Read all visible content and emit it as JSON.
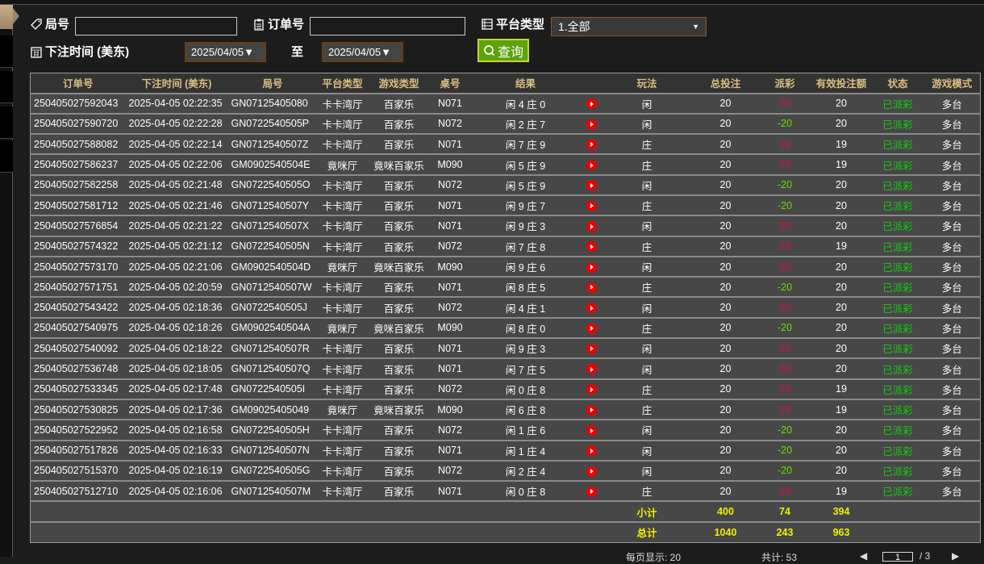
{
  "filters": {
    "round_label": "局号",
    "round_value": "",
    "order_label": "订单号",
    "order_value": "",
    "platform_label": "平台类型",
    "platform_value": "1.全部",
    "time_label": "下注时间 (美东)",
    "date_from": "2025/04/05",
    "to_label": "至",
    "date_to": "2025/04/05",
    "query_label": "查询"
  },
  "colors": {
    "accent": "#5aa40c",
    "header_text": "#d9bf82",
    "win": "#d0103a",
    "loss": "#66dd00",
    "status": "#10d010",
    "total": "#f0f000"
  },
  "columns": [
    "订单号",
    "下注时间 (美东)",
    "局号",
    "平台类型",
    "游戏类型",
    "桌号",
    "结果",
    "",
    "玩法",
    "总投注",
    "派彩",
    "有效投注额",
    "状态",
    "游戏模式"
  ],
  "rows": [
    [
      "250405027592043",
      "2025-04-05 02:22:35",
      "GN07125405080",
      "卡卡湾厅",
      "百家乐",
      "N071",
      "闲 4 庄 0",
      "闲",
      "20",
      "20",
      "20",
      "已派彩",
      "多台"
    ],
    [
      "250405027590720",
      "2025-04-05 02:22:28",
      "GN0722540505P",
      "卡卡湾厅",
      "百家乐",
      "N072",
      "闲 2 庄 7",
      "闲",
      "20",
      "-20",
      "20",
      "已派彩",
      "多台"
    ],
    [
      "250405027588082",
      "2025-04-05 02:22:14",
      "GN0712540507Z",
      "卡卡湾厅",
      "百家乐",
      "N071",
      "闲 7 庄 9",
      "庄",
      "20",
      "19",
      "19",
      "已派彩",
      "多台"
    ],
    [
      "250405027586237",
      "2025-04-05 02:22:06",
      "GM0902540504E",
      "竟咪厅",
      "竟咪百家乐",
      "M090",
      "闲 5 庄 9",
      "庄",
      "20",
      "19",
      "19",
      "已派彩",
      "多台"
    ],
    [
      "250405027582258",
      "2025-04-05 02:21:48",
      "GN0722540505O",
      "卡卡湾厅",
      "百家乐",
      "N072",
      "闲 5 庄 9",
      "闲",
      "20",
      "-20",
      "20",
      "已派彩",
      "多台"
    ],
    [
      "250405027581712",
      "2025-04-05 02:21:46",
      "GN0712540507Y",
      "卡卡湾厅",
      "百家乐",
      "N071",
      "闲 9 庄 7",
      "庄",
      "20",
      "-20",
      "20",
      "已派彩",
      "多台"
    ],
    [
      "250405027576854",
      "2025-04-05 02:21:22",
      "GN0712540507X",
      "卡卡湾厅",
      "百家乐",
      "N071",
      "闲 9 庄 3",
      "闲",
      "20",
      "20",
      "20",
      "已派彩",
      "多台"
    ],
    [
      "250405027574322",
      "2025-04-05 02:21:12",
      "GN0722540505N",
      "卡卡湾厅",
      "百家乐",
      "N072",
      "闲 7 庄 8",
      "庄",
      "20",
      "19",
      "19",
      "已派彩",
      "多台"
    ],
    [
      "250405027573170",
      "2025-04-05 02:21:06",
      "GM0902540504D",
      "竟咪厅",
      "竟咪百家乐",
      "M090",
      "闲 9 庄 6",
      "闲",
      "20",
      "20",
      "20",
      "已派彩",
      "多台"
    ],
    [
      "250405027571751",
      "2025-04-05 02:20:59",
      "GN0712540507W",
      "卡卡湾厅",
      "百家乐",
      "N071",
      "闲 8 庄 5",
      "庄",
      "20",
      "-20",
      "20",
      "已派彩",
      "多台"
    ],
    [
      "250405027543422",
      "2025-04-05 02:18:36",
      "GN0722540505J",
      "卡卡湾厅",
      "百家乐",
      "N072",
      "闲 4 庄 1",
      "闲",
      "20",
      "20",
      "20",
      "已派彩",
      "多台"
    ],
    [
      "250405027540975",
      "2025-04-05 02:18:26",
      "GM0902540504A",
      "竟咪厅",
      "竟咪百家乐",
      "M090",
      "闲 8 庄 0",
      "庄",
      "20",
      "-20",
      "20",
      "已派彩",
      "多台"
    ],
    [
      "250405027540092",
      "2025-04-05 02:18:22",
      "GN0712540507R",
      "卡卡湾厅",
      "百家乐",
      "N071",
      "闲 9 庄 3",
      "闲",
      "20",
      "20",
      "20",
      "已派彩",
      "多台"
    ],
    [
      "250405027536748",
      "2025-04-05 02:18:05",
      "GN0712540507Q",
      "卡卡湾厅",
      "百家乐",
      "N071",
      "闲 7 庄 5",
      "闲",
      "20",
      "20",
      "20",
      "已派彩",
      "多台"
    ],
    [
      "250405027533345",
      "2025-04-05 02:17:48",
      "GN0722540505I",
      "卡卡湾厅",
      "百家乐",
      "N072",
      "闲 0 庄 8",
      "庄",
      "20",
      "19",
      "19",
      "已派彩",
      "多台"
    ],
    [
      "250405027530825",
      "2025-04-05 02:17:36",
      "GM09025405049",
      "竟咪厅",
      "竟咪百家乐",
      "M090",
      "闲 6 庄 8",
      "庄",
      "20",
      "19",
      "19",
      "已派彩",
      "多台"
    ],
    [
      "250405027522952",
      "2025-04-05 02:16:58",
      "GN0722540505H",
      "卡卡湾厅",
      "百家乐",
      "N072",
      "闲 1 庄 6",
      "闲",
      "20",
      "-20",
      "20",
      "已派彩",
      "多台"
    ],
    [
      "250405027517826",
      "2025-04-05 02:16:33",
      "GN0712540507N",
      "卡卡湾厅",
      "百家乐",
      "N071",
      "闲 1 庄 4",
      "闲",
      "20",
      "-20",
      "20",
      "已派彩",
      "多台"
    ],
    [
      "250405027515370",
      "2025-04-05 02:16:19",
      "GN0722540505G",
      "卡卡湾厅",
      "百家乐",
      "N072",
      "闲 2 庄 4",
      "闲",
      "20",
      "-20",
      "20",
      "已派彩",
      "多台"
    ],
    [
      "250405027512710",
      "2025-04-05 02:16:06",
      "GN0712540507M",
      "卡卡湾厅",
      "百家乐",
      "N071",
      "闲 0 庄 8",
      "庄",
      "20",
      "19",
      "19",
      "已派彩",
      "多台"
    ]
  ],
  "subtotal": {
    "label": "小计",
    "bet": "400",
    "payout": "74",
    "valid": "394"
  },
  "total": {
    "label": "总计",
    "bet": "1040",
    "payout": "243",
    "valid": "963"
  },
  "pager": {
    "per_page": "每页显示: 20",
    "count": "共计: 53",
    "page": "1",
    "pages": "/ 3"
  }
}
